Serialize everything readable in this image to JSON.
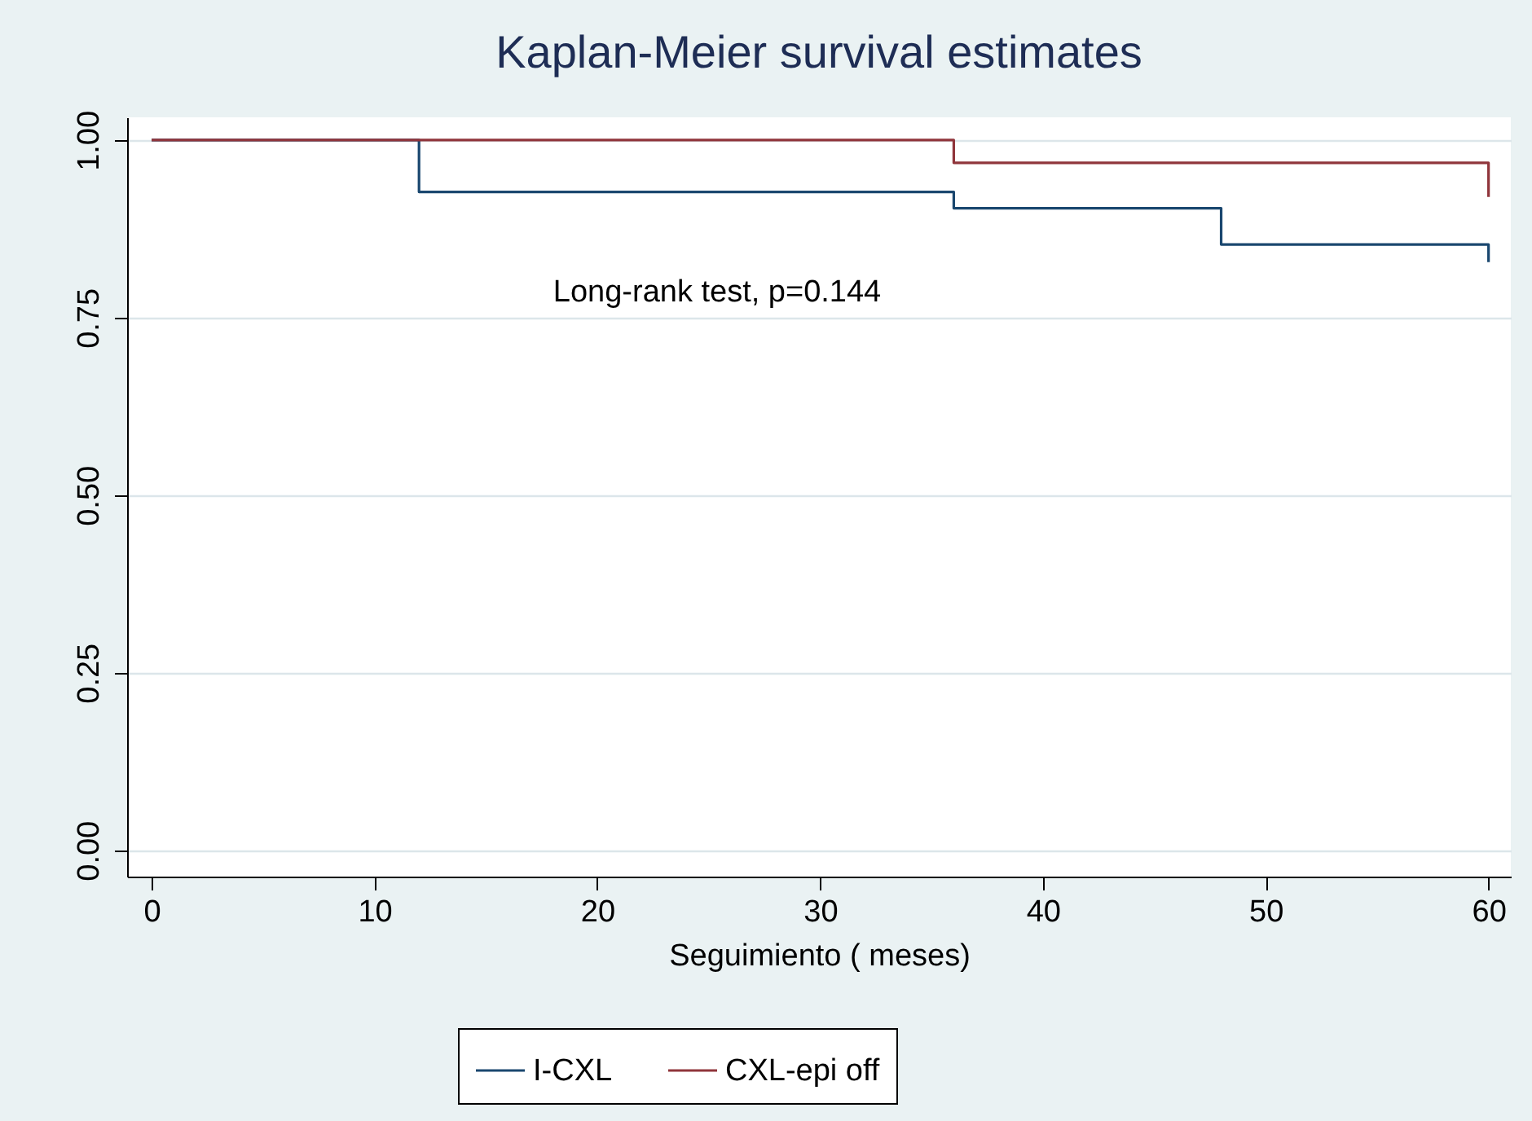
{
  "chart_data": {
    "type": "step",
    "title": "Kaplan-Meier survival estimates",
    "xlabel": "Seguimiento ( meses)",
    "series": [
      {
        "name": "I-CXL",
        "color": "#1a476f",
        "x": [
          0,
          12,
          36,
          48,
          60
        ],
        "values": [
          1,
          0.927,
          0.904,
          0.853,
          0.828
        ]
      },
      {
        "name": "CXL-epi off",
        "color": "#90353b",
        "x": [
          0,
          36,
          60
        ],
        "values": [
          1,
          0.968,
          0.92
        ]
      }
    ],
    "xlim": [
      -1.1,
      61
    ],
    "xticks": [
      0,
      10,
      20,
      30,
      40,
      50,
      60
    ],
    "ylim": [
      -0.037,
      1.032
    ],
    "yticks": [
      {
        "value": 0,
        "label": "0.00"
      },
      {
        "value": 0.25,
        "label": "0.25"
      },
      {
        "value": 0.5,
        "label": "0.50"
      },
      {
        "value": 0.75,
        "label": "0.75"
      },
      {
        "value": 1,
        "label": "1.00"
      }
    ],
    "grid": "y",
    "legend": "bottom",
    "annotations": [
      "Long-rank test, p=0.144"
    ]
  }
}
